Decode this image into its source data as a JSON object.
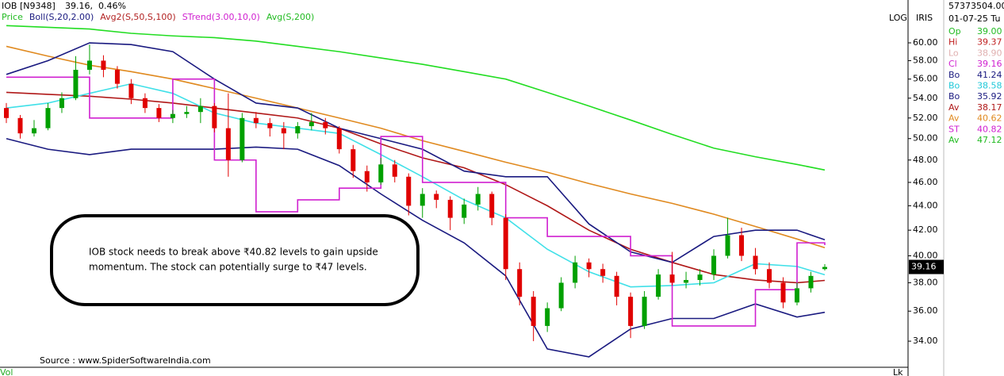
{
  "chart_data": {
    "type": "candlestick",
    "header": {
      "symbol": "IOB [N9348]",
      "price": "39.16,",
      "change": "0.46%"
    },
    "legend": [
      {
        "name": "Price",
        "color": "#22bb22"
      },
      {
        "name": "Boll(S,20,2.00)",
        "color": "#1a1a80"
      },
      {
        "name": "Avg2(S,50,S,100)",
        "color": "#b22222"
      },
      {
        "name": "STrend(3.00,10,0)",
        "color": "#d020d0"
      },
      {
        "name": "Avg(S,200)",
        "color": "#22bb22"
      }
    ],
    "log_label": "LOG",
    "iris_label": "IRIS",
    "log": true,
    "ylim": [
      32.4,
      65.1
    ],
    "yticks": [
      {
        "value": 34,
        "label": "34.00"
      },
      {
        "value": 36,
        "label": "36.00"
      },
      {
        "value": 38,
        "label": "38.00"
      },
      {
        "value": 40,
        "label": "40.00"
      },
      {
        "value": 42,
        "label": "42.00"
      },
      {
        "value": 44,
        "label": "44.00"
      },
      {
        "value": 46,
        "label": "46.00"
      },
      {
        "value": 48,
        "label": "48.00"
      },
      {
        "value": 50,
        "label": "50.00"
      },
      {
        "value": 52,
        "label": "52.00"
      },
      {
        "value": 54,
        "label": "54.00"
      },
      {
        "value": 56,
        "label": "56.00"
      },
      {
        "value": 58,
        "label": "58.00"
      },
      {
        "value": 60,
        "label": "60.00"
      }
    ],
    "last_price": {
      "value": 39.16,
      "label": "39.16"
    },
    "up_color": "#00a000",
    "down_color": "#e00000",
    "candles": [
      [
        53.0,
        53.5,
        51.5,
        52.0
      ],
      [
        52.0,
        52.3,
        50.0,
        50.5
      ],
      [
        50.5,
        51.8,
        50.2,
        51.0
      ],
      [
        51.0,
        53.5,
        50.8,
        53.0
      ],
      [
        53.0,
        54.6,
        52.5,
        54.0
      ],
      [
        54.0,
        58.5,
        53.8,
        57.0
      ],
      [
        57.0,
        59.8,
        56.5,
        58.0
      ],
      [
        58.0,
        58.6,
        56.2,
        57.0
      ],
      [
        57.0,
        57.4,
        55.0,
        55.5
      ],
      [
        55.5,
        56.0,
        53.4,
        54.0
      ],
      [
        54.0,
        54.5,
        52.5,
        53.0
      ],
      [
        53.0,
        53.4,
        51.6,
        52.0
      ],
      [
        52.0,
        52.8,
        51.5,
        52.4
      ],
      [
        52.4,
        53.2,
        52.0,
        52.6
      ],
      [
        52.6,
        54.0,
        51.5,
        53.2
      ],
      [
        53.2,
        53.5,
        50.6,
        51.0
      ],
      [
        51.0,
        54.5,
        46.5,
        48.0
      ],
      [
        48.0,
        52.5,
        47.8,
        52.0
      ],
      [
        52.0,
        52.6,
        51.0,
        51.5
      ],
      [
        51.5,
        52.0,
        50.2,
        51.0
      ],
      [
        51.0,
        51.6,
        49.0,
        50.5
      ],
      [
        50.5,
        51.6,
        50.0,
        51.2
      ],
      [
        51.2,
        52.5,
        50.8,
        51.6
      ],
      [
        51.6,
        52.0,
        50.4,
        51.0
      ],
      [
        51.0,
        51.2,
        48.6,
        49.0
      ],
      [
        49.0,
        49.4,
        46.4,
        47.0
      ],
      [
        47.0,
        47.5,
        45.2,
        46.0
      ],
      [
        46.0,
        48.2,
        45.8,
        47.6
      ],
      [
        47.6,
        48.0,
        46.0,
        46.5
      ],
      [
        46.5,
        46.8,
        43.2,
        44.0
      ],
      [
        44.0,
        45.5,
        43.0,
        45.0
      ],
      [
        45.0,
        45.3,
        43.8,
        44.5
      ],
      [
        44.5,
        44.8,
        42.0,
        43.0
      ],
      [
        43.0,
        44.6,
        42.5,
        44.1
      ],
      [
        44.1,
        45.6,
        43.6,
        45.0
      ],
      [
        45.0,
        45.2,
        42.4,
        43.0
      ],
      [
        43.0,
        43.3,
        38.2,
        39.0
      ],
      [
        39.0,
        39.5,
        36.4,
        37.0
      ],
      [
        37.0,
        37.4,
        34.0,
        35.0
      ],
      [
        35.0,
        36.6,
        34.6,
        36.2
      ],
      [
        36.2,
        38.4,
        36.0,
        38.0
      ],
      [
        38.0,
        40.0,
        37.6,
        39.5
      ],
      [
        39.5,
        39.8,
        38.4,
        39.0
      ],
      [
        39.0,
        39.4,
        38.0,
        38.5
      ],
      [
        38.5,
        38.8,
        36.4,
        37.0
      ],
      [
        37.0,
        37.3,
        34.2,
        35.0
      ],
      [
        35.0,
        37.4,
        34.8,
        37.0
      ],
      [
        37.0,
        39.0,
        36.8,
        38.6
      ],
      [
        38.6,
        40.3,
        37.8,
        38.0
      ],
      [
        38.0,
        38.8,
        37.6,
        38.2
      ],
      [
        38.2,
        39.0,
        37.8,
        38.6
      ],
      [
        38.6,
        40.5,
        38.2,
        40.0
      ],
      [
        40.0,
        43.0,
        39.8,
        41.6
      ],
      [
        41.6,
        42.2,
        39.6,
        40.0
      ],
      [
        40.0,
        40.6,
        38.6,
        39.0
      ],
      [
        39.0,
        39.5,
        37.6,
        38.0
      ],
      [
        38.0,
        38.4,
        36.2,
        36.6
      ],
      [
        36.6,
        38.0,
        36.4,
        37.6
      ],
      [
        37.6,
        38.8,
        37.3,
        38.5
      ],
      [
        39.0,
        39.37,
        38.9,
        39.16
      ]
    ],
    "series": [
      {
        "color": "#22dd22",
        "x": [
          0,
          3,
          6,
          9,
          12,
          15,
          18,
          21,
          24,
          27,
          30,
          33,
          36,
          39,
          42,
          45,
          48,
          51,
          54,
          57,
          59
        ],
        "values": [
          62.0,
          61.8,
          61.6,
          61.1,
          60.8,
          60.6,
          60.2,
          59.6,
          59.0,
          58.3,
          57.6,
          56.8,
          56.0,
          54.6,
          53.2,
          51.8,
          50.4,
          49.1,
          48.3,
          47.6,
          47.1
        ]
      },
      {
        "color": "#e08a20",
        "x": [
          0,
          3,
          6,
          9,
          12,
          15,
          18,
          21,
          24,
          27,
          30,
          33,
          36,
          39,
          42,
          45,
          48,
          51,
          54,
          57,
          59
        ],
        "values": [
          59.6,
          58.5,
          57.5,
          56.8,
          56.0,
          55.0,
          54.0,
          53.0,
          52.0,
          51.0,
          49.8,
          48.8,
          47.8,
          46.9,
          45.9,
          45.0,
          44.2,
          43.3,
          42.3,
          41.3,
          40.62
        ]
      },
      {
        "color": "#b01818",
        "x": [
          0,
          3,
          6,
          9,
          12,
          15,
          18,
          21,
          24,
          27,
          30,
          33,
          36,
          39,
          42,
          45,
          48,
          51,
          54,
          57,
          59
        ],
        "values": [
          54.6,
          54.4,
          54.2,
          53.9,
          53.5,
          53.0,
          52.5,
          52.0,
          51.0,
          49.5,
          48.2,
          47.3,
          45.8,
          44.0,
          42.0,
          40.5,
          39.5,
          38.6,
          38.2,
          38.0,
          38.17
        ]
      },
      {
        "color": "#40e0e8",
        "x": [
          0,
          3,
          6,
          9,
          12,
          15,
          18,
          21,
          24,
          27,
          30,
          33,
          36,
          39,
          42,
          45,
          48,
          51,
          54,
          57,
          59
        ],
        "values": [
          53.0,
          53.5,
          54.5,
          55.5,
          54.5,
          52.5,
          51.5,
          51.0,
          50.5,
          48.5,
          46.5,
          44.5,
          43.0,
          40.5,
          38.8,
          37.7,
          37.8,
          38.0,
          39.4,
          39.2,
          38.58
        ]
      },
      {
        "color": "#1a1a80",
        "x": [
          0,
          3,
          6,
          9,
          12,
          15,
          18,
          21,
          24,
          27,
          30,
          33,
          36,
          39,
          42,
          45,
          48,
          51,
          54,
          57,
          59
        ],
        "values": [
          56.5,
          58.0,
          60.0,
          59.8,
          59.0,
          56.0,
          53.5,
          53.0,
          51.0,
          50.0,
          49.0,
          47.0,
          46.5,
          46.5,
          42.5,
          40.3,
          39.5,
          41.5,
          42.0,
          42.0,
          41.24
        ]
      },
      {
        "color": "#1a1a80",
        "x": [
          0,
          3,
          6,
          9,
          12,
          15,
          18,
          21,
          24,
          27,
          30,
          33,
          36,
          39,
          42,
          45,
          48,
          51,
          54,
          57,
          59
        ],
        "values": [
          50.0,
          49.0,
          48.5,
          49.0,
          49.0,
          49.0,
          49.2,
          49.0,
          47.5,
          45.0,
          42.8,
          41.0,
          38.5,
          33.5,
          33.0,
          34.8,
          35.5,
          35.5,
          36.5,
          35.6,
          35.92
        ]
      },
      {
        "color": "#d020d0",
        "step": true,
        "x": [
          0,
          3,
          6,
          9,
          12,
          15,
          18,
          21,
          24,
          27,
          30,
          33,
          36,
          39,
          42,
          45,
          48,
          51,
          54,
          57,
          59
        ],
        "values": [
          56.2,
          56.2,
          52.0,
          52.0,
          56.0,
          48.0,
          43.5,
          44.5,
          45.5,
          50.2,
          46.0,
          46.0,
          43.0,
          41.5,
          41.5,
          40.0,
          35.0,
          35.0,
          37.5,
          41.0,
          40.82
        ]
      }
    ],
    "annotation": [
      "IOB stock needs to break above ₹40.82 levels to gain upside",
      "momentum. The stock can potentially surge to ₹47 levels."
    ],
    "source": "Source : www.SpiderSoftwareIndia.com",
    "volume_label": "Vol",
    "corner_label": "Lk"
  },
  "info_panel": {
    "volume": "57373504.00",
    "date": "01-07-25 Tu",
    "rows": [
      {
        "label": "Op",
        "value": "39.00",
        "color": "#22bb22"
      },
      {
        "label": "Hi",
        "value": "39.37",
        "color": "#c02020"
      },
      {
        "label": "Lo",
        "value": "38.90",
        "color": "#e0b0b0"
      },
      {
        "label": "Cl",
        "value": "39.16",
        "color": "#d020d0"
      },
      {
        "label": "Bo",
        "value": "41.24",
        "color": "#1a1a80"
      },
      {
        "label": "Bo",
        "value": "38.58",
        "color": "#20c8d8"
      },
      {
        "label": "Bo",
        "value": "35.92",
        "color": "#1a1a80"
      },
      {
        "label": "Av",
        "value": "38.17",
        "color": "#b01818"
      },
      {
        "label": "Av",
        "value": "40.62",
        "color": "#e08a20"
      },
      {
        "label": "ST",
        "value": "40.82",
        "color": "#d020d0"
      },
      {
        "label": "Av",
        "value": "47.12",
        "color": "#22bb22"
      }
    ]
  }
}
